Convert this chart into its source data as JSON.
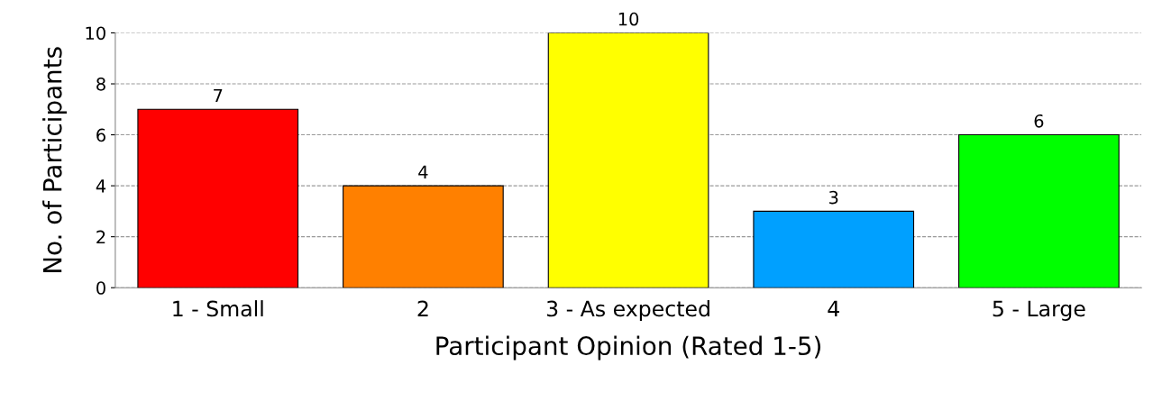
{
  "chart_data": {
    "type": "bar",
    "xlabel": "Participant Opinion (Rated 1-5)",
    "ylabel": "No. of Participants",
    "categories": [
      "1 - Small",
      "2",
      "3 - As expected",
      "4",
      "5 - Large"
    ],
    "values": [
      7,
      4,
      10,
      3,
      6
    ],
    "colors": [
      "#ff0000",
      "#ff8000",
      "#ffff00",
      "#00a0ff",
      "#00ff00"
    ],
    "ylim": [
      0,
      10
    ],
    "yticks": [
      0,
      2,
      4,
      6,
      8,
      10
    ],
    "grid": "y",
    "data_labels": true
  }
}
